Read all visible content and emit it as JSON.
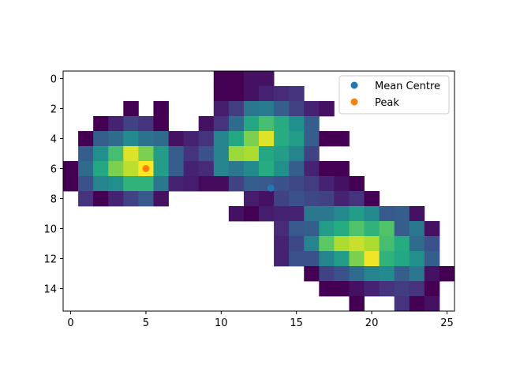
{
  "chart_data": {
    "type": "heatmap",
    "title": "",
    "xlabel": "",
    "ylabel": "",
    "grid": false,
    "colormap": "viridis",
    "value_range": [
      0,
      1
    ],
    "x_ticks": [
      "0",
      "5",
      "10",
      "15",
      "20",
      "25"
    ],
    "y_ticks": [
      "0",
      "2",
      "4",
      "6",
      "8",
      "10",
      "12",
      "14"
    ],
    "xlim": [
      -0.5,
      25.5
    ],
    "ylim": [
      15.5,
      -0.5
    ],
    "grid_size": {
      "rows": 16,
      "cols": 26
    },
    "cells": [
      [
        0,
        10,
        0.0
      ],
      [
        0,
        11,
        0.0
      ],
      [
        0,
        12,
        0.05
      ],
      [
        0,
        13,
        0.05
      ],
      [
        1,
        10,
        0.0
      ],
      [
        1,
        11,
        0.0
      ],
      [
        1,
        12,
        0.05
      ],
      [
        1,
        13,
        0.1
      ],
      [
        1,
        14,
        0.12
      ],
      [
        1,
        15,
        0.15
      ],
      [
        2,
        4,
        0.0
      ],
      [
        2,
        6,
        0.0
      ],
      [
        2,
        10,
        0.08
      ],
      [
        2,
        11,
        0.18
      ],
      [
        2,
        12,
        0.4
      ],
      [
        2,
        13,
        0.42
      ],
      [
        2,
        14,
        0.3
      ],
      [
        2,
        15,
        0.2
      ],
      [
        2,
        16,
        0.1
      ],
      [
        2,
        17,
        0.05
      ],
      [
        3,
        2,
        0.0
      ],
      [
        3,
        3,
        0.1
      ],
      [
        3,
        4,
        0.2
      ],
      [
        3,
        5,
        0.15
      ],
      [
        3,
        6,
        0.0
      ],
      [
        3,
        9,
        0.05
      ],
      [
        3,
        10,
        0.15
      ],
      [
        3,
        11,
        0.35
      ],
      [
        3,
        12,
        0.6
      ],
      [
        3,
        13,
        0.7
      ],
      [
        3,
        14,
        0.62
      ],
      [
        3,
        15,
        0.5
      ],
      [
        3,
        16,
        0.3
      ],
      [
        4,
        1,
        0.0
      ],
      [
        4,
        2,
        0.3
      ],
      [
        4,
        3,
        0.35
      ],
      [
        4,
        4,
        0.48
      ],
      [
        4,
        5,
        0.38
      ],
      [
        4,
        6,
        0.35
      ],
      [
        4,
        7,
        0.05
      ],
      [
        4,
        8,
        0.1
      ],
      [
        4,
        9,
        0.15
      ],
      [
        4,
        10,
        0.45
      ],
      [
        4,
        11,
        0.6
      ],
      [
        4,
        12,
        0.8
      ],
      [
        4,
        13,
        0.95
      ],
      [
        4,
        14,
        0.62
      ],
      [
        4,
        15,
        0.55
      ],
      [
        4,
        16,
        0.3
      ],
      [
        4,
        17,
        0.0
      ],
      [
        4,
        18,
        0.0
      ],
      [
        5,
        1,
        0.3
      ],
      [
        5,
        2,
        0.5
      ],
      [
        5,
        3,
        0.7
      ],
      [
        5,
        4,
        0.95
      ],
      [
        5,
        5,
        0.8
      ],
      [
        5,
        6,
        0.55
      ],
      [
        5,
        7,
        0.3
      ],
      [
        5,
        8,
        0.15
      ],
      [
        5,
        9,
        0.25
      ],
      [
        5,
        10,
        0.45
      ],
      [
        5,
        11,
        0.85
      ],
      [
        5,
        12,
        0.88
      ],
      [
        5,
        13,
        0.6
      ],
      [
        5,
        14,
        0.55
      ],
      [
        5,
        15,
        0.45
      ],
      [
        5,
        16,
        0.2
      ],
      [
        6,
        0,
        0.0
      ],
      [
        6,
        1,
        0.35
      ],
      [
        6,
        2,
        0.6
      ],
      [
        6,
        3,
        0.8
      ],
      [
        6,
        4,
        0.9
      ],
      [
        6,
        5,
        1.0
      ],
      [
        6,
        6,
        0.55
      ],
      [
        6,
        7,
        0.3
      ],
      [
        6,
        8,
        0.1
      ],
      [
        6,
        9,
        0.12
      ],
      [
        6,
        10,
        0.45
      ],
      [
        6,
        11,
        0.4
      ],
      [
        6,
        12,
        0.48
      ],
      [
        6,
        13,
        0.62
      ],
      [
        6,
        14,
        0.5
      ],
      [
        6,
        15,
        0.3
      ],
      [
        6,
        16,
        0.1
      ],
      [
        6,
        17,
        0.0
      ],
      [
        6,
        18,
        0.0
      ],
      [
        7,
        0,
        0.0
      ],
      [
        7,
        1,
        0.25
      ],
      [
        7,
        2,
        0.45
      ],
      [
        7,
        3,
        0.5
      ],
      [
        7,
        4,
        0.65
      ],
      [
        7,
        5,
        0.65
      ],
      [
        7,
        6,
        0.4
      ],
      [
        7,
        7,
        0.1
      ],
      [
        7,
        8,
        0.08
      ],
      [
        7,
        9,
        0.03
      ],
      [
        7,
        10,
        0.03
      ],
      [
        7,
        11,
        0.2
      ],
      [
        7,
        12,
        0.3
      ],
      [
        7,
        13,
        0.28
      ],
      [
        7,
        14,
        0.25
      ],
      [
        7,
        15,
        0.22
      ],
      [
        7,
        16,
        0.18
      ],
      [
        7,
        17,
        0.1
      ],
      [
        7,
        18,
        0.05
      ],
      [
        7,
        19,
        0.0
      ],
      [
        8,
        1,
        0.15
      ],
      [
        8,
        2,
        0.0
      ],
      [
        8,
        3,
        0.1
      ],
      [
        8,
        4,
        0.2
      ],
      [
        8,
        5,
        0.28
      ],
      [
        8,
        6,
        0.05
      ],
      [
        8,
        12,
        0.08
      ],
      [
        8,
        13,
        0.05
      ],
      [
        8,
        14,
        0.2
      ],
      [
        8,
        15,
        0.25
      ],
      [
        8,
        16,
        0.22
      ],
      [
        8,
        17,
        0.2
      ],
      [
        8,
        18,
        0.1
      ],
      [
        8,
        19,
        0.15
      ],
      [
        8,
        20,
        0.0
      ],
      [
        9,
        11,
        0.05
      ],
      [
        9,
        12,
        0.0
      ],
      [
        9,
        13,
        0.08
      ],
      [
        9,
        14,
        0.1
      ],
      [
        9,
        15,
        0.1
      ],
      [
        9,
        16,
        0.4
      ],
      [
        9,
        17,
        0.4
      ],
      [
        9,
        18,
        0.48
      ],
      [
        9,
        19,
        0.55
      ],
      [
        9,
        20,
        0.48
      ],
      [
        9,
        21,
        0.28
      ],
      [
        9,
        22,
        0.3
      ],
      [
        9,
        23,
        0.05
      ],
      [
        10,
        14,
        0.12
      ],
      [
        10,
        15,
        0.28
      ],
      [
        10,
        16,
        0.3
      ],
      [
        10,
        17,
        0.55
      ],
      [
        10,
        18,
        0.62
      ],
      [
        10,
        19,
        0.72
      ],
      [
        10,
        20,
        0.65
      ],
      [
        10,
        21,
        0.72
      ],
      [
        10,
        22,
        0.3
      ],
      [
        10,
        23,
        0.4
      ],
      [
        10,
        24,
        0.05
      ],
      [
        11,
        14,
        0.1
      ],
      [
        11,
        15,
        0.22
      ],
      [
        11,
        16,
        0.45
      ],
      [
        11,
        17,
        0.75
      ],
      [
        11,
        18,
        0.88
      ],
      [
        11,
        19,
        0.92
      ],
      [
        11,
        20,
        0.88
      ],
      [
        11,
        21,
        0.7
      ],
      [
        11,
        22,
        0.62
      ],
      [
        11,
        23,
        0.35
      ],
      [
        11,
        24,
        0.25
      ],
      [
        12,
        14,
        0.1
      ],
      [
        12,
        15,
        0.25
      ],
      [
        12,
        16,
        0.25
      ],
      [
        12,
        17,
        0.45
      ],
      [
        12,
        18,
        0.55
      ],
      [
        12,
        19,
        0.8
      ],
      [
        12,
        20,
        0.98
      ],
      [
        12,
        21,
        0.65
      ],
      [
        12,
        22,
        0.6
      ],
      [
        12,
        23,
        0.5
      ],
      [
        12,
        24,
        0.3
      ],
      [
        13,
        16,
        0.0
      ],
      [
        13,
        17,
        0.2
      ],
      [
        13,
        18,
        0.25
      ],
      [
        13,
        19,
        0.35
      ],
      [
        13,
        20,
        0.45
      ],
      [
        13,
        21,
        0.48
      ],
      [
        13,
        22,
        0.3
      ],
      [
        13,
        23,
        0.4
      ],
      [
        13,
        24,
        0.05
      ],
      [
        13,
        25,
        0.0
      ],
      [
        14,
        17,
        0.0
      ],
      [
        14,
        18,
        0.0
      ],
      [
        14,
        19,
        0.05
      ],
      [
        14,
        20,
        0.1
      ],
      [
        14,
        21,
        0.15
      ],
      [
        14,
        22,
        0.18
      ],
      [
        14,
        23,
        0.15
      ],
      [
        14,
        24,
        0.0
      ],
      [
        15,
        19,
        0.0
      ],
      [
        15,
        22,
        0.15
      ],
      [
        15,
        23,
        0.0
      ],
      [
        15,
        24,
        0.05
      ]
    ],
    "series": [
      {
        "name": "Mean Centre",
        "type": "scatter",
        "color": "#1f77b4",
        "x": 13.3,
        "y": 7.3
      },
      {
        "name": "Peak",
        "type": "scatter",
        "color": "#ff7f0e",
        "x": 5,
        "y": 6
      }
    ],
    "legend_position": "top-right"
  }
}
